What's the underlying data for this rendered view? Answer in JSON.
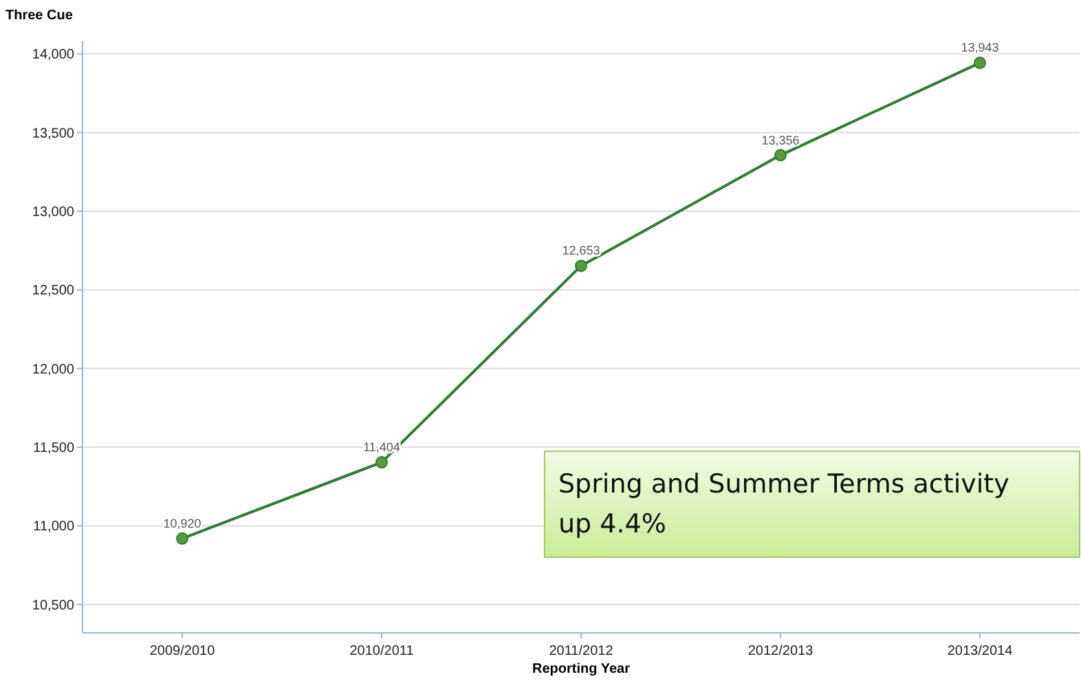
{
  "chart_data": {
    "type": "line",
    "ylabel": "Three Cue",
    "xlabel": "Reporting Year",
    "categories": [
      "2009/2010",
      "2010/2011",
      "2011/2012",
      "2012/2013",
      "2013/2014"
    ],
    "series": [
      {
        "color": "#2e7d32",
        "values": [
          10920,
          11404,
          12653,
          13356,
          13943
        ],
        "value_labels": [
          "10,920",
          "11,404",
          "12,653",
          "13,356",
          "13,943"
        ]
      }
    ],
    "ylim": [
      10320,
      14080
    ],
    "yticks": [
      {
        "value": 10500,
        "label": "10,500"
      },
      {
        "value": 11000,
        "label": "11,000"
      },
      {
        "value": 11500,
        "label": "11,500"
      },
      {
        "value": 12000,
        "label": "12,000"
      },
      {
        "value": 12500,
        "label": "12,500"
      },
      {
        "value": 13000,
        "label": "13,000"
      },
      {
        "value": 13500,
        "label": "13,500"
      },
      {
        "value": 14000,
        "label": "14,000"
      }
    ],
    "grid": "y",
    "marker": "circle",
    "annotations": [
      "Spring and Summer Terms activity up 4.4%"
    ]
  }
}
